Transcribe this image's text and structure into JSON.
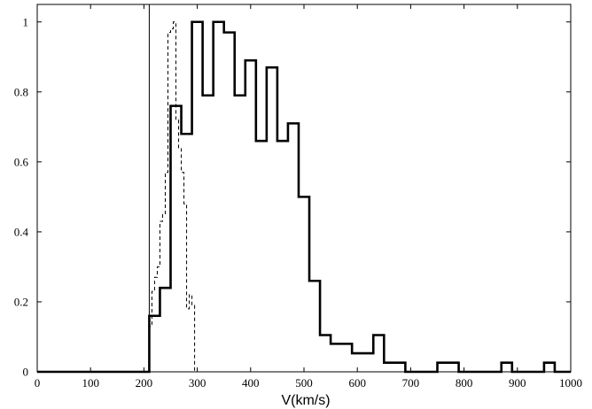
{
  "chart_data": {
    "type": "line",
    "title": "",
    "xlabel": "V(km/s)",
    "ylabel": "",
    "xlim": [
      0,
      1000
    ],
    "ylim": [
      0,
      1.05
    ],
    "xticks": [
      0,
      100,
      200,
      300,
      400,
      500,
      600,
      700,
      800,
      900,
      1000
    ],
    "yticks": [
      0,
      0.2,
      0.4,
      0.6,
      0.8,
      1
    ],
    "xtick_labels": [
      "0",
      "100",
      "200",
      "300",
      "400",
      "500",
      "600",
      "700",
      "800",
      "900",
      "1000"
    ],
    "ytick_labels": [
      "0",
      "0.2",
      "0.4",
      "0.6",
      "0.8",
      "1"
    ],
    "grid": false,
    "vertical_line_x": 210,
    "series": [
      {
        "style": "solid-thick-step",
        "color": "#000000",
        "bin_edges": [
          0,
          210,
          230,
          250,
          270,
          290,
          310,
          330,
          350,
          370,
          390,
          410,
          430,
          450,
          470,
          490,
          510,
          530,
          550,
          590,
          630,
          650,
          690,
          750,
          790,
          870,
          890,
          950,
          970,
          1000
        ],
        "values": [
          0,
          0.16,
          0.24,
          0.76,
          0.68,
          1.0,
          0.79,
          1.0,
          0.97,
          0.79,
          0.89,
          0.66,
          0.87,
          0.66,
          0.71,
          0.5,
          0.26,
          0.105,
          0.08,
          0.053,
          0.105,
          0.026,
          0,
          0.026,
          0,
          0.026,
          0,
          0.026,
          0
        ]
      },
      {
        "style": "dashed-step",
        "color": "#000000",
        "bin_edges": [
          210,
          215,
          220,
          225,
          230,
          235,
          240,
          245,
          250,
          255,
          260,
          265,
          270,
          275,
          280,
          285,
          290,
          295
        ],
        "values": [
          0.13,
          0.23,
          0.27,
          0.3,
          0.43,
          0.45,
          0.57,
          0.97,
          0.98,
          1.0,
          0.72,
          0.64,
          0.57,
          0.48,
          0.18,
          0.22,
          0.19
        ]
      }
    ]
  }
}
